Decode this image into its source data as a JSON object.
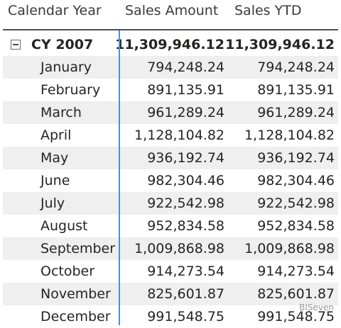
{
  "header": {
    "year_label": "Calendar Year",
    "sales_label": "Sales Amount",
    "ytd_label": "Sales YTD"
  },
  "total": {
    "label": "CY 2007",
    "sales": "11,309,946.12",
    "ytd": "11,309,946.12"
  },
  "rows": [
    {
      "name": "January",
      "sales": "794,248.24",
      "ytd": "794,248.24"
    },
    {
      "name": "February",
      "sales": "891,135.91",
      "ytd": "891,135.91"
    },
    {
      "name": "March",
      "sales": "961,289.24",
      "ytd": "961,289.24"
    },
    {
      "name": "April",
      "sales": "1,128,104.82",
      "ytd": "1,128,104.82"
    },
    {
      "name": "May",
      "sales": "936,192.74",
      "ytd": "936,192.74"
    },
    {
      "name": "June",
      "sales": "982,304.46",
      "ytd": "982,304.46"
    },
    {
      "name": "July",
      "sales": "922,542.98",
      "ytd": "922,542.98"
    },
    {
      "name": "August",
      "sales": "952,834.58",
      "ytd": "952,834.58"
    },
    {
      "name": "September",
      "sales": "1,009,868.98",
      "ytd": "1,009,868.98"
    },
    {
      "name": "October",
      "sales": "914,273.54",
      "ytd": "914,273.54"
    },
    {
      "name": "November",
      "sales": "825,601.87",
      "ytd": "825,601.87"
    },
    {
      "name": "December",
      "sales": "991,548.75",
      "ytd": "991,548.75"
    }
  ],
  "watermark": "BISeven"
}
